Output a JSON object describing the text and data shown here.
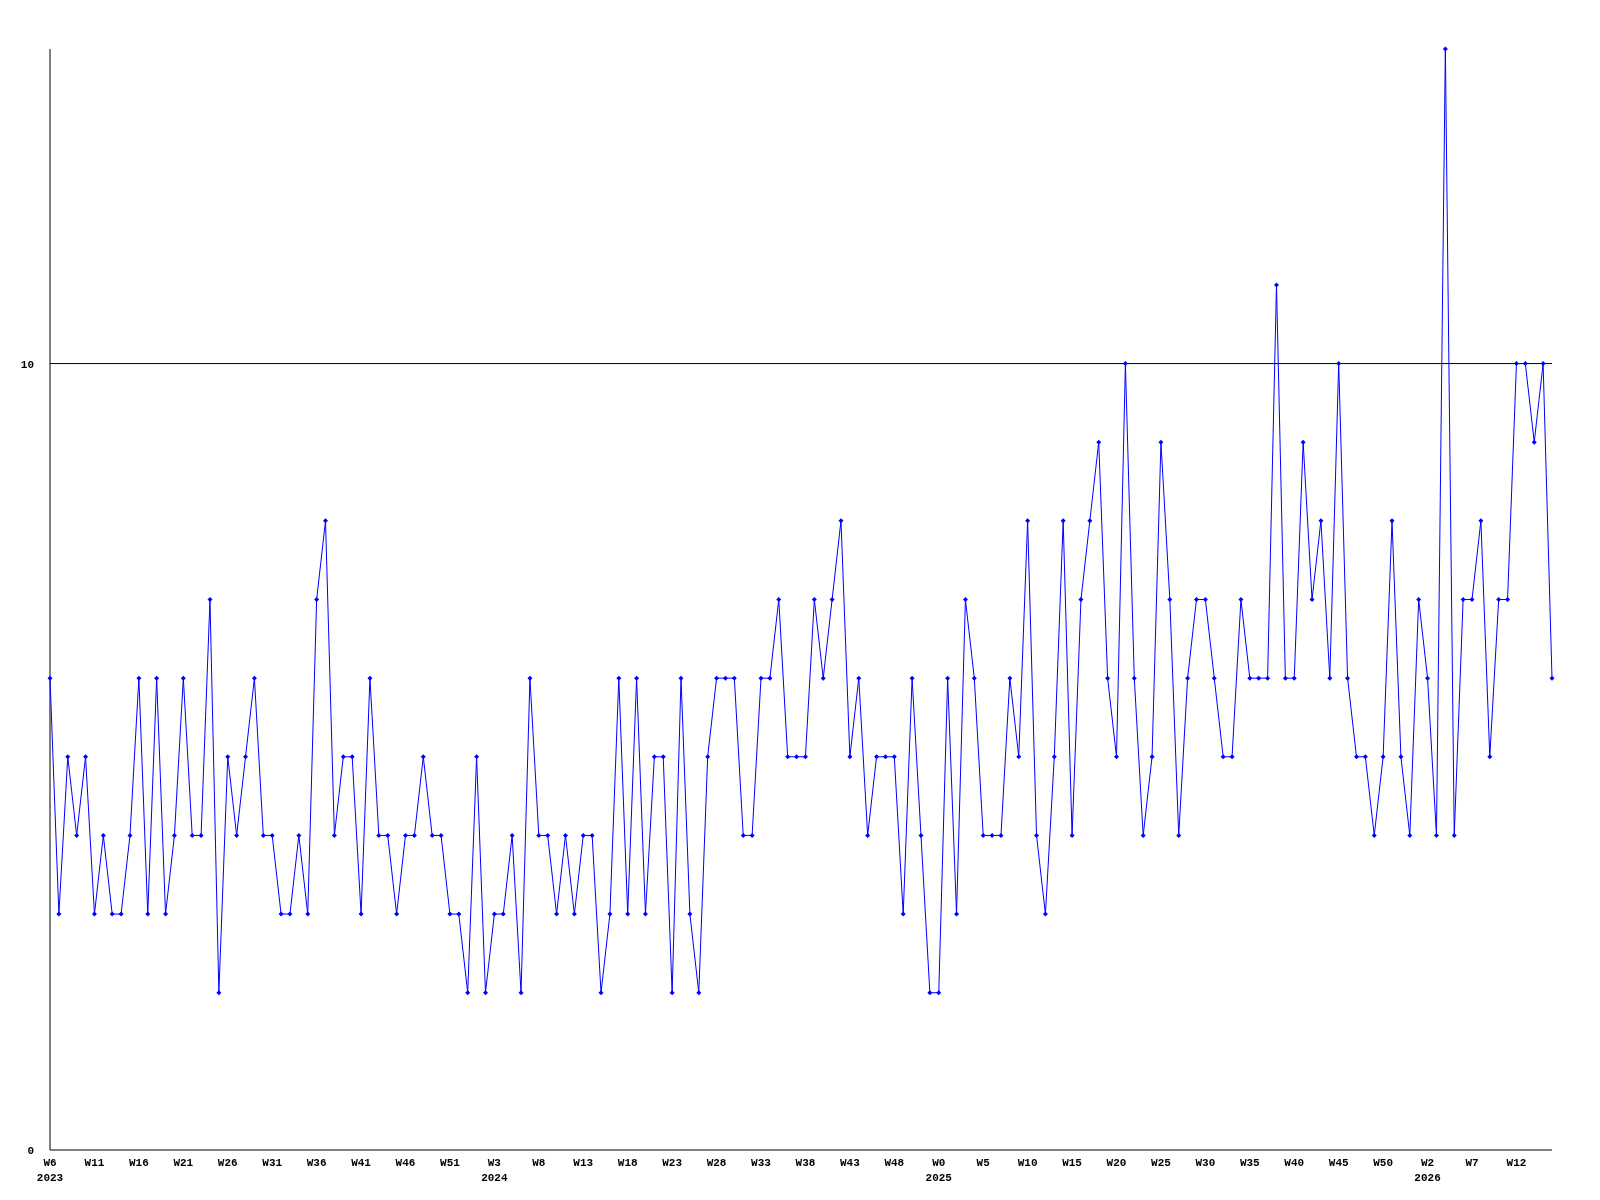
{
  "chart_data": {
    "type": "line",
    "categories": [
      "W6\n2023",
      null,
      null,
      null,
      null,
      "W11",
      null,
      null,
      null,
      null,
      "W16",
      null,
      null,
      null,
      null,
      "W21",
      null,
      null,
      null,
      null,
      "W26",
      null,
      null,
      null,
      null,
      "W31",
      null,
      null,
      null,
      null,
      "W36",
      null,
      null,
      null,
      null,
      "W41",
      null,
      null,
      null,
      null,
      "W46",
      null,
      null,
      null,
      null,
      "W51",
      null,
      null,
      null,
      null,
      "W3\n2024",
      null,
      null,
      null,
      null,
      "W8",
      null,
      null,
      null,
      null,
      "W13",
      null,
      null,
      null,
      null,
      "W18",
      null,
      null,
      null,
      null,
      "W23",
      null,
      null,
      null,
      null,
      "W28",
      null,
      null,
      null,
      null,
      "W33",
      null,
      null,
      null,
      null,
      "W38",
      null,
      null,
      null,
      null,
      "W43",
      null,
      null,
      null,
      null,
      "W48",
      null,
      null,
      null,
      null,
      "W0\n2025",
      null,
      null,
      null,
      null,
      "W5",
      null,
      null,
      null,
      null,
      "W10",
      null,
      null,
      null,
      null,
      "W15",
      null,
      null,
      null,
      null,
      "W20",
      null,
      null,
      null,
      null,
      "W25",
      null,
      null,
      null,
      null,
      "W30",
      null,
      null,
      null,
      null,
      "W35",
      null,
      null,
      null,
      null,
      "W40",
      null,
      null,
      null,
      null,
      "W45",
      null,
      null,
      null,
      null,
      "W50",
      null,
      null,
      null,
      null,
      "W2\n2026",
      null,
      null,
      null,
      null,
      "W7",
      null,
      null,
      null,
      null,
      "W12",
      null,
      null,
      null,
      null
    ],
    "series": [
      {
        "color": "#0000ff",
        "values": [
          6,
          3,
          5,
          4,
          5,
          3,
          4,
          3,
          3,
          4,
          6,
          3,
          6,
          3,
          4,
          6,
          4,
          4,
          7,
          2,
          5,
          4,
          5,
          6,
          4,
          4,
          3,
          3,
          4,
          3,
          7,
          8,
          4,
          5,
          5,
          3,
          6,
          4,
          4,
          3,
          4,
          4,
          5,
          4,
          4,
          3,
          3,
          2,
          5,
          2,
          3,
          3,
          4,
          2,
          6,
          4,
          4,
          3,
          4,
          3,
          4,
          4,
          2,
          3,
          6,
          3,
          6,
          3,
          5,
          5,
          2,
          6,
          3,
          2,
          5,
          6,
          6,
          6,
          4,
          4,
          6,
          6,
          7,
          5,
          5,
          5,
          7,
          6,
          7,
          8,
          5,
          6,
          4,
          5,
          5,
          5,
          3,
          6,
          4,
          2,
          2,
          6,
          3,
          7,
          6,
          4,
          4,
          4,
          6,
          5,
          8,
          4,
          3,
          5,
          8,
          4,
          7,
          8,
          9,
          6,
          5,
          10,
          6,
          4,
          5,
          9,
          7,
          4,
          6,
          7,
          7,
          6,
          5,
          5,
          7,
          6,
          6,
          6,
          11,
          6,
          6,
          9,
          7,
          8,
          6,
          10,
          6,
          5,
          5,
          4,
          5,
          8,
          5,
          4,
          7,
          6,
          4,
          14,
          4,
          7,
          7,
          8,
          5,
          7,
          7,
          10,
          10,
          9,
          10,
          6
        ]
      }
    ],
    "ylim": [
      0,
      14
    ],
    "yticks": [
      0,
      10
    ],
    "grid": "y",
    "marker": "diamond",
    "line_style": "solid"
  }
}
